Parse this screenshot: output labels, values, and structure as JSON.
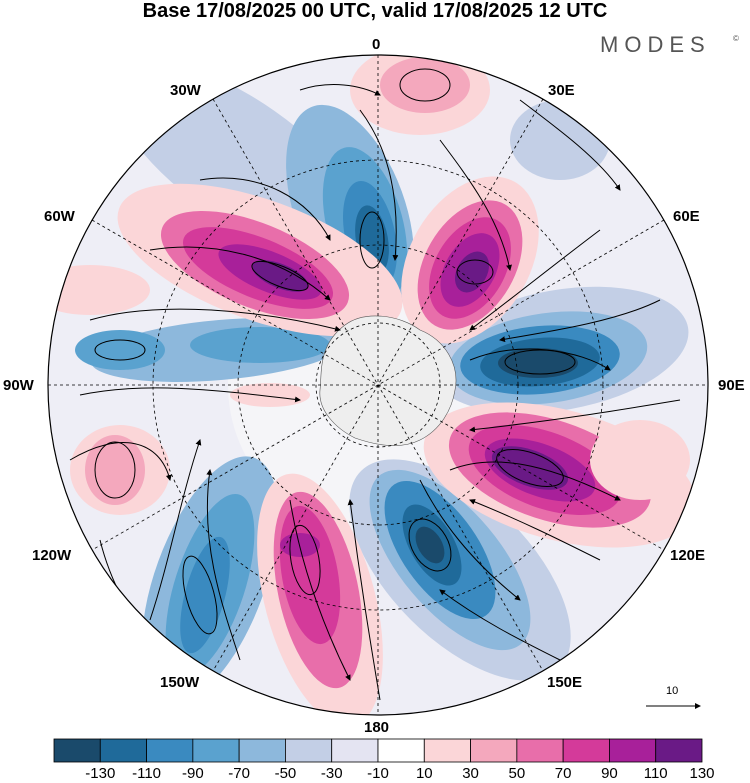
{
  "title": "Base 17/08/2025 00 UTC, valid 17/08/2025 12 UTC",
  "brand": "MODES",
  "brand_mark": "©",
  "longitude_labels": {
    "lon0": "0",
    "lon30e": "30E",
    "lon60e": "60E",
    "lon90e": "90E",
    "lon120e": "120E",
    "lon150e": "150E",
    "lon180": "180",
    "lon150w": "150W",
    "lon120w": "120W",
    "lon90w": "90W",
    "lon60w": "60W",
    "lon30w": "30W"
  },
  "reference_vector": "10",
  "colorbar": {
    "labels": [
      "-130",
      "-110",
      "-90",
      "-70",
      "-50",
      "-30",
      "-10",
      "10",
      "30",
      "50",
      "70",
      "90",
      "110",
      "130"
    ],
    "colors": [
      "#1a4a6b",
      "#1f6a9a",
      "#3a8ac0",
      "#5aa2cf",
      "#8db8dc",
      "#c3cfe6",
      "#e4e4f2",
      "#ffffff",
      "#fbd6d8",
      "#f4a8bd",
      "#e86eaa",
      "#d43a9a",
      "#a8209a",
      "#6a1a86"
    ]
  },
  "colors": {
    "neg_strong": "#1a4a6b",
    "neg_mid": "#3a8ac0",
    "neg_weak": "#8db8dc",
    "pos_weak": "#f4a8bd",
    "pos_mid": "#d43a9a",
    "pos_strong": "#6a1a86",
    "land": "#bfbfbf"
  }
}
